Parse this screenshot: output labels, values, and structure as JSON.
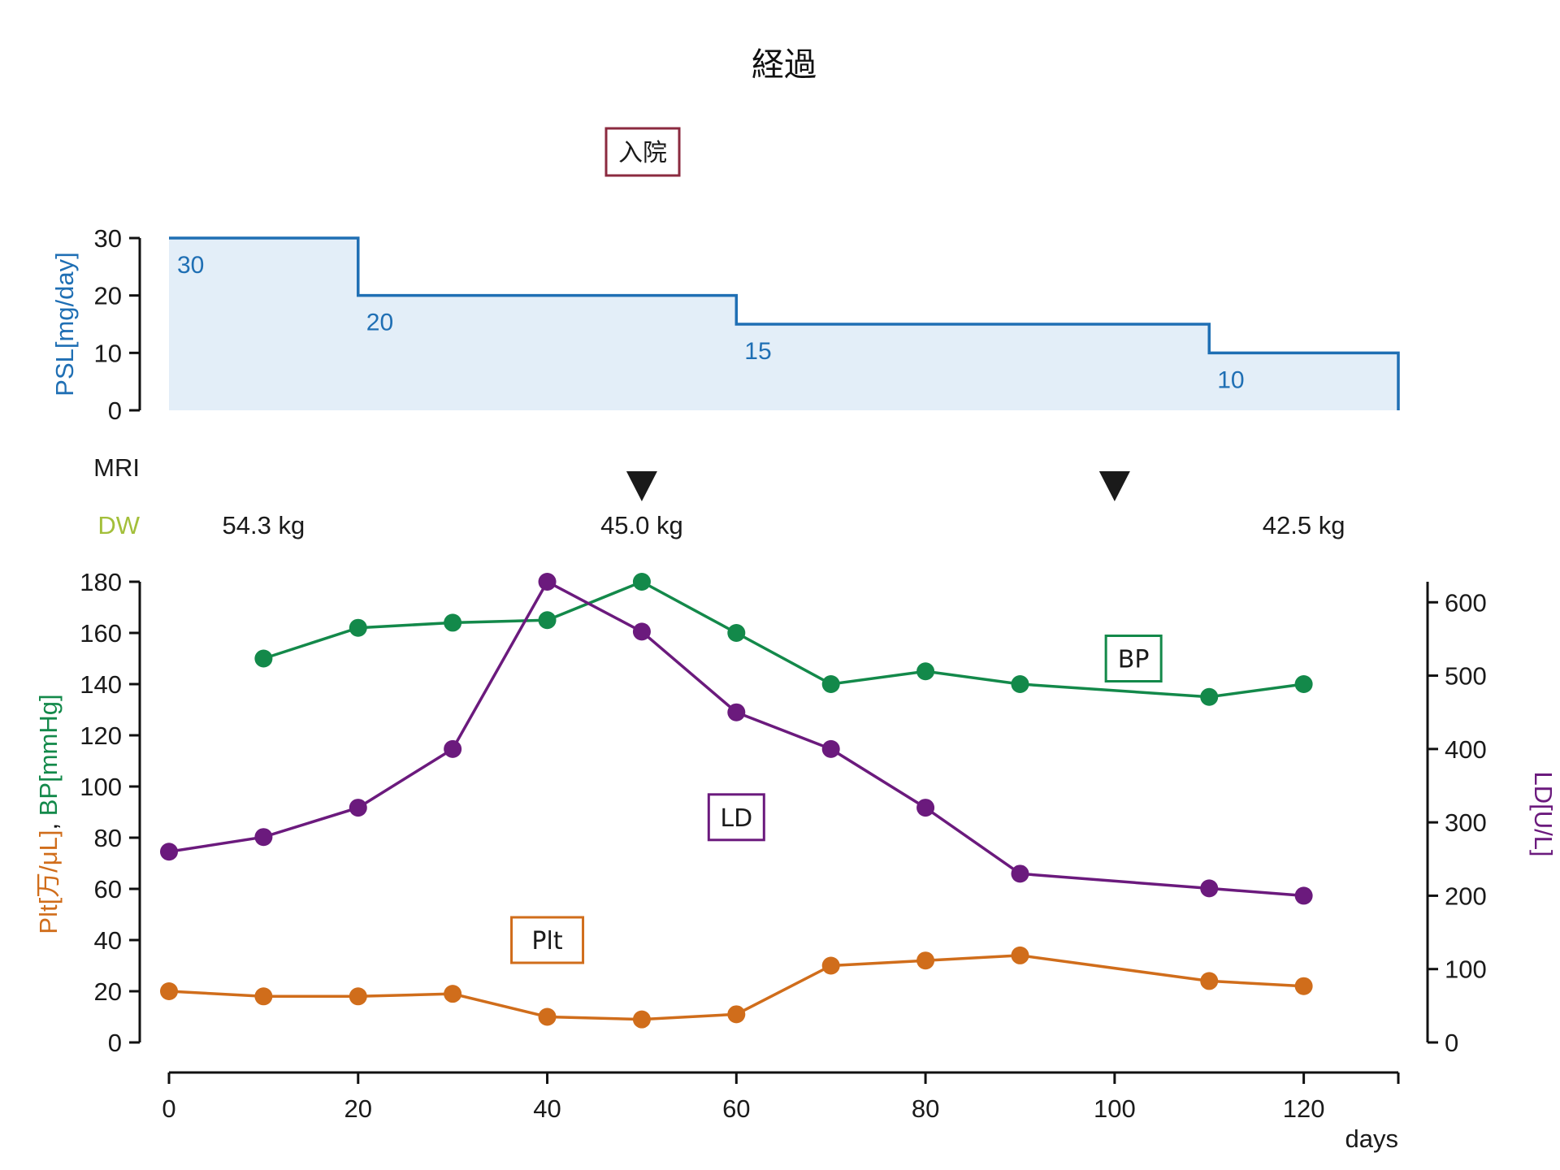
{
  "chart_data": {
    "type": "line",
    "title": "経過",
    "colors": {
      "psl": "#1f6fb4",
      "psl_fill": "#e3eef8",
      "bp": "#13894a",
      "ld": "#6b1a7d",
      "plt": "#d06d1b",
      "dw": "#a3bf3a",
      "admission": "#8b2a3f",
      "axis": "#111111"
    },
    "x_axis": {
      "label": "days",
      "range": [
        0,
        130
      ],
      "ticks": [
        0,
        20,
        40,
        60,
        80,
        100,
        120
      ]
    },
    "psl_panel": {
      "ylabel": "PSL[mg/day]",
      "ylim": [
        0,
        30
      ],
      "yticks": [
        0,
        10,
        20,
        30
      ],
      "steps": [
        {
          "start": 0,
          "end": 20,
          "value": 30,
          "label": "30"
        },
        {
          "start": 20,
          "end": 60,
          "value": 20,
          "label": "20"
        },
        {
          "start": 60,
          "end": 110,
          "value": 15,
          "label": "15"
        },
        {
          "start": 110,
          "end": 130,
          "value": 10,
          "label": "10"
        }
      ]
    },
    "admission": {
      "label": "入院",
      "x": 50
    },
    "mri": {
      "label": "MRI",
      "marker_days": [
        50,
        100
      ]
    },
    "dw": {
      "label": "DW",
      "entries": [
        {
          "day": 10,
          "text": "54.3 kg"
        },
        {
          "day": 50,
          "text": "45.0 kg"
        },
        {
          "day": 120,
          "text": "42.5 kg"
        }
      ]
    },
    "left_axis": {
      "ylabel_parts": [
        "Plt[万/μL]",
        ", ",
        "BP[mmHg]"
      ],
      "ylim": [
        0,
        180
      ],
      "yticks": [
        0,
        20,
        40,
        60,
        80,
        100,
        120,
        140,
        160,
        180
      ]
    },
    "right_axis": {
      "ylabel": "LD[U/L]",
      "ylim": [
        0,
        628
      ],
      "yticks": [
        0,
        100,
        200,
        300,
        400,
        500,
        600
      ]
    },
    "series": [
      {
        "name": "BP",
        "axis": "left",
        "x": [
          10,
          20,
          30,
          40,
          50,
          60,
          70,
          80,
          90,
          110,
          120
        ],
        "values": [
          150,
          162,
          164,
          165,
          180,
          160,
          140,
          145,
          140,
          135,
          140
        ],
        "label_day": 102
      },
      {
        "name": "LD",
        "axis": "right",
        "x": [
          0,
          10,
          20,
          30,
          40,
          50,
          60,
          70,
          80,
          90,
          110,
          120
        ],
        "values": [
          260,
          280,
          320,
          400,
          628,
          560,
          450,
          400,
          320,
          230,
          210,
          200
        ],
        "label_day": 60
      },
      {
        "name": "Plt",
        "axis": "left",
        "x": [
          0,
          10,
          20,
          30,
          40,
          50,
          60,
          70,
          80,
          90,
          110,
          120
        ],
        "values": [
          20,
          18,
          18,
          19,
          10,
          9,
          11,
          30,
          32,
          34,
          24,
          22
        ],
        "label_day": 40
      }
    ]
  }
}
